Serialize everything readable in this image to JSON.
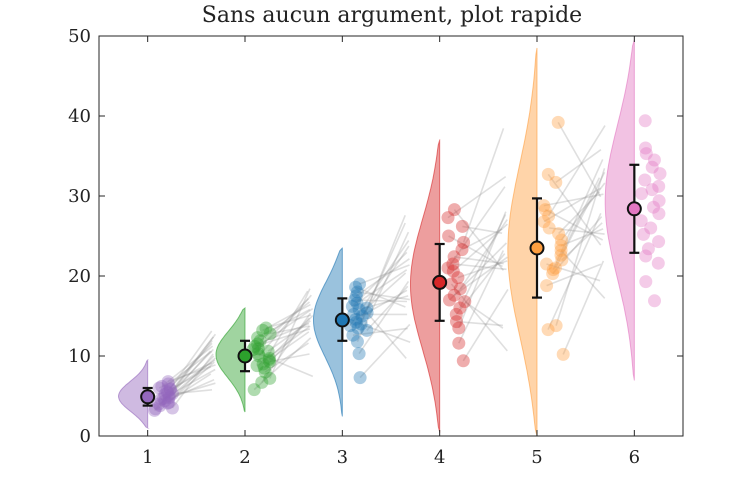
{
  "chart_data": {
    "type": "raincloud",
    "title": "Sans aucun argument, plot rapide",
    "xlabel": "",
    "ylabel": "",
    "categories": [
      "1",
      "2",
      "3",
      "4",
      "5",
      "6"
    ],
    "xlim": [
      0.5,
      6.5
    ],
    "ylim": [
      0,
      50
    ],
    "yticks": [
      0,
      10,
      20,
      30,
      40,
      50
    ],
    "grid": false,
    "legend": "none",
    "paired_lines": true,
    "groups": [
      {
        "category": "1",
        "color": "#9467bd",
        "mean": 4.9,
        "error": [
          3.8,
          6.0
        ],
        "violin": {
          "range": [
            1.0,
            9.5
          ],
          "mode": 4.9
        },
        "points": [
          3.2,
          3.5,
          3.8,
          4.0,
          4.2,
          4.4,
          4.6,
          4.8,
          5.0,
          5.2,
          5.4,
          5.6,
          5.8,
          6.0,
          6.2,
          6.5,
          6.8,
          3.4,
          4.1,
          4.7,
          5.3,
          5.9
        ]
      },
      {
        "category": "2",
        "color": "#2ca02c",
        "mean": 10.0,
        "error": [
          8.1,
          11.9
        ],
        "violin": {
          "range": [
            3.0,
            16.0
          ],
          "mode": 10.3
        },
        "points": [
          5.8,
          6.7,
          7.2,
          8.0,
          8.5,
          9.0,
          9.3,
          9.7,
          10.0,
          10.3,
          10.6,
          10.9,
          11.2,
          11.5,
          11.9,
          12.3,
          12.8,
          13.2,
          13.5,
          9.5,
          10.8,
          8.8
        ]
      },
      {
        "category": "3",
        "color": "#1f77b4",
        "mean": 14.5,
        "error": [
          11.9,
          17.2
        ],
        "violin": {
          "range": [
            2.5,
            23.5
          ],
          "mode": 14.8
        },
        "points": [
          7.3,
          10.3,
          11.8,
          12.6,
          13.2,
          13.8,
          14.2,
          14.6,
          15.0,
          15.4,
          15.8,
          16.2,
          16.6,
          17.0,
          17.5,
          18.0,
          18.6,
          19.0,
          14.0,
          15.2,
          16.0,
          13.5
        ]
      },
      {
        "category": "4",
        "color": "#d62728",
        "mean": 19.2,
        "error": [
          14.4,
          24.0
        ],
        "violin": {
          "range": [
            0.5,
            37.0
          ],
          "mode": 19.0
        },
        "points": [
          9.4,
          11.6,
          13.5,
          14.3,
          15.2,
          16.0,
          16.8,
          17.6,
          18.4,
          19.0,
          19.8,
          20.6,
          21.5,
          22.4,
          23.3,
          24.2,
          25.0,
          26.2,
          27.3,
          28.3,
          17.0,
          21.0
        ]
      },
      {
        "category": "5",
        "color": "#ff9f40",
        "mean": 23.5,
        "error": [
          17.3,
          29.7
        ],
        "violin": {
          "range": [
            0.0,
            48.5
          ],
          "mode": 23.0
        },
        "points": [
          10.2,
          13.3,
          13.8,
          18.8,
          20.3,
          21.0,
          21.5,
          22.0,
          22.6,
          23.2,
          23.8,
          24.5,
          25.3,
          26.0,
          26.8,
          27.5,
          28.3,
          28.8,
          31.7,
          32.7,
          39.2,
          20.8
        ]
      },
      {
        "category": "6",
        "color": "#e377c2",
        "mean": 28.4,
        "error": [
          22.9,
          33.9
        ],
        "violin": {
          "range": [
            7.0,
            49.5
          ],
          "mode": 29.5
        },
        "points": [
          16.9,
          19.3,
          21.6,
          22.5,
          23.4,
          24.3,
          25.2,
          26.0,
          26.9,
          27.8,
          28.6,
          29.4,
          30.3,
          31.2,
          32.0,
          32.8,
          33.6,
          34.5,
          35.3,
          36.0,
          39.4,
          30.8
        ]
      }
    ]
  }
}
